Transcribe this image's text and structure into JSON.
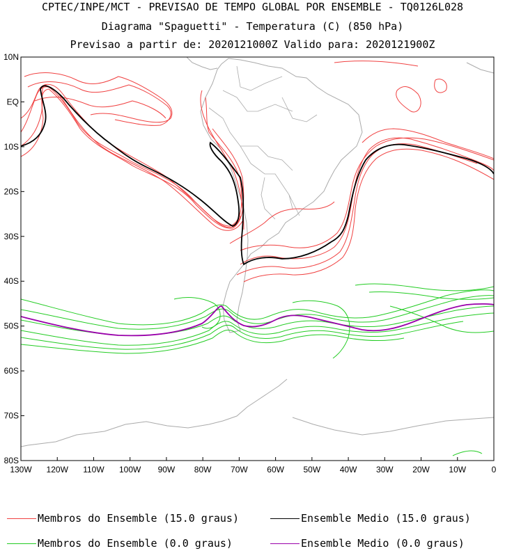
{
  "titles": {
    "line1": "CPTEC/INPE/MCT - PREVISAO DE TEMPO GLOBAL POR ENSEMBLE - TQ0126L028",
    "line2": "Diagrama \"Spaguetti\" - Temperatura (C) (850 hPa)",
    "line3": "Previsao a partir de: 2020121000Z  Valido para: 2020121900Z"
  },
  "axes": {
    "lat_labels": [
      "10N",
      "EQ",
      "10S",
      "20S",
      "30S",
      "40S",
      "50S",
      "60S",
      "70S",
      "80S"
    ],
    "lon_labels": [
      "130W",
      "120W",
      "110W",
      "100W",
      "90W",
      "80W",
      "70W",
      "60W",
      "50W",
      "40W",
      "30W",
      "20W",
      "10W",
      "0"
    ],
    "lat_range": [
      -80,
      10
    ],
    "lon_range": [
      -130,
      0
    ]
  },
  "legend": [
    {
      "label": "Membros do Ensemble (15.0 graus)",
      "color": "#f04040"
    },
    {
      "label": "Ensemble Medio (15.0 graus)",
      "color": "#000000"
    },
    {
      "label": "Membros do Ensemble (0.0 graus)",
      "color": "#22cc22"
    },
    {
      "label": "Ensemble Medio (0.0 graus)",
      "color": "#9900aa"
    }
  ],
  "colors": {
    "coast": "#aaaaaa",
    "border": "#aaaaaa"
  }
}
